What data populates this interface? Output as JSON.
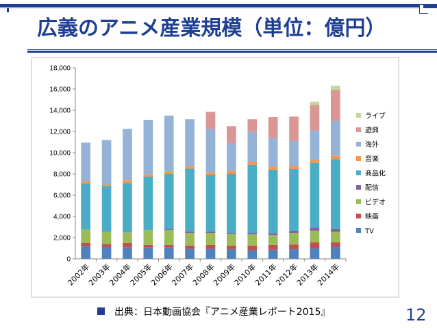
{
  "slide": {
    "title": "広義のアニメ産業規模（単位：億円）",
    "source": "出典：日本動画協会『アニメ産業レポート2015』",
    "page_number": "12"
  },
  "colors": {
    "theme_blue": "#1f3f94"
  },
  "chart_data": {
    "type": "bar",
    "stacked": true,
    "categories": [
      "2002年",
      "2003年",
      "2004年",
      "2005年",
      "2006年",
      "2007年",
      "2008年",
      "2009年",
      "2010年",
      "2011年",
      "2012年",
      "2013年",
      "2014年"
    ],
    "ylim": [
      0,
      18000
    ],
    "yticks": [
      0,
      2000,
      4000,
      6000,
      8000,
      10000,
      12000,
      14000,
      16000,
      18000
    ],
    "ytick_labels": [
      "0",
      "2,000",
      "4,000",
      "6,000",
      "8,000",
      "10,000",
      "12,000",
      "14,000",
      "16,000",
      "18,000"
    ],
    "grid": false,
    "legend_position": "right",
    "series": [
      {
        "name": "TV",
        "color": "#4f81bd",
        "values": [
          1200,
          1100,
          1050,
          1050,
          1050,
          950,
          950,
          900,
          800,
          850,
          900,
          1000,
          1100
        ]
      },
      {
        "name": "映画",
        "color": "#c0504d",
        "values": [
          300,
          300,
          450,
          250,
          250,
          300,
          350,
          350,
          450,
          450,
          450,
          550,
          450
        ]
      },
      {
        "name": "ビデオ",
        "color": "#9bbb59",
        "values": [
          1250,
          1150,
          1000,
          1400,
          1400,
          1200,
          1150,
          1100,
          1050,
          950,
          1100,
          1100,
          1000
        ]
      },
      {
        "name": "配信",
        "color": "#8064a2",
        "values": [
          0,
          0,
          0,
          0,
          100,
          100,
          100,
          100,
          150,
          150,
          200,
          300,
          300
        ]
      },
      {
        "name": "商品化",
        "color": "#4bacc6",
        "values": [
          4350,
          4300,
          4650,
          5050,
          5200,
          5950,
          5350,
          5550,
          6400,
          6000,
          5800,
          6100,
          6550
        ]
      },
      {
        "name": "音楽",
        "color": "#f79646",
        "values": [
          200,
          150,
          250,
          200,
          250,
          250,
          250,
          300,
          300,
          300,
          300,
          250,
          300
        ]
      },
      {
        "name": "海外",
        "color": "#95b3d7",
        "values": [
          3650,
          4200,
          4850,
          5150,
          5250,
          4400,
          4100,
          2600,
          2800,
          2650,
          2350,
          2800,
          3300
        ]
      },
      {
        "name": "遊興",
        "color": "#d99694",
        "values": [
          0,
          0,
          0,
          0,
          0,
          0,
          1600,
          1600,
          1200,
          2000,
          2300,
          2400,
          2900
        ]
      },
      {
        "name": "ライブ",
        "color": "#c3d69b",
        "values": [
          0,
          0,
          0,
          0,
          0,
          0,
          0,
          0,
          0,
          0,
          0,
          300,
          400
        ]
      }
    ]
  }
}
